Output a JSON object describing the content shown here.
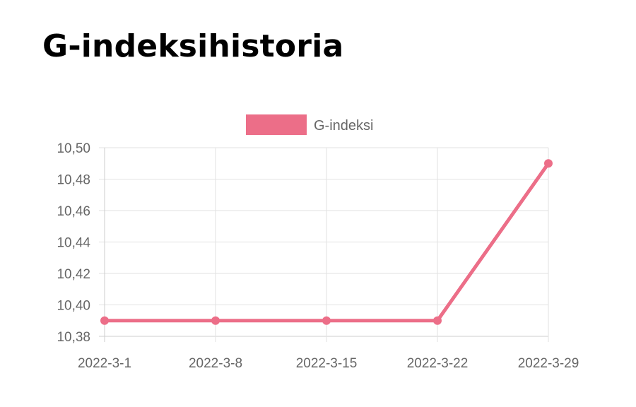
{
  "page": {
    "title": "G-indeksihistoria"
  },
  "chart_data": {
    "type": "line",
    "title": "",
    "xlabel": "",
    "ylabel": "",
    "categories": [
      "2022-3-1",
      "2022-3-8",
      "2022-3-15",
      "2022-3-22",
      "2022-3-29"
    ],
    "series": [
      {
        "name": "G-indeksi",
        "values": [
          10.39,
          10.39,
          10.39,
          10.39,
          10.49
        ],
        "color": "#ec6e88"
      }
    ],
    "ylim": [
      10.38,
      10.5
    ],
    "yticks": [
      10.38,
      10.4,
      10.42,
      10.44,
      10.46,
      10.48,
      10.5
    ],
    "ytick_labels": [
      "10,38",
      "10,40",
      "10,42",
      "10,44",
      "10,46",
      "10,48",
      "10,50"
    ],
    "grid": true,
    "legend": "top-center"
  }
}
